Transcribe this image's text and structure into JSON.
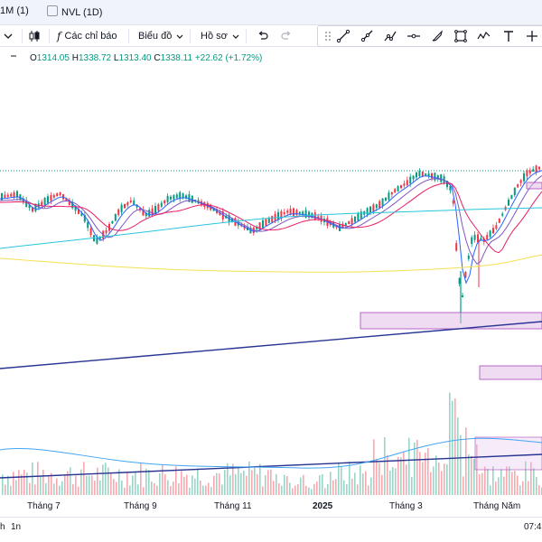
{
  "tabs": [
    {
      "label": "1M (1)"
    },
    {
      "label": "NVL (1D)"
    }
  ],
  "toolbar": {
    "indicators_label": "Các chỉ báo",
    "chart_label": "Biểu đồ",
    "profile_label": "Hồ sơ"
  },
  "legend": {
    "o_label": "O",
    "o_value": "1314.05",
    "h_label": "H",
    "h_value": "1338.72",
    "l_label": "L",
    "l_value": "1313.40",
    "c_label": "C",
    "c_value": "1338.11",
    "change": "+22.62 (+1.72%)"
  },
  "xaxis": {
    "labels": [
      "Tháng 7",
      "Tháng 9",
      "Tháng 11",
      "2025",
      "Tháng 3",
      "Tháng Năm"
    ]
  },
  "bottom": {
    "range_left": "h",
    "range_1n": "1n",
    "time": "07:4"
  },
  "colors": {
    "up": "#089981",
    "down": "#f23645",
    "ma_blue": "#2962ff",
    "ma_purple": "#7e57c2",
    "ma_red": "#e91e63",
    "ma_teal": "#26c6da",
    "ma_yellow": "#f5e050",
    "zone": "#e1bee7"
  },
  "chart_data": {
    "type": "candlestick",
    "xlabel": "",
    "ylabel": "",
    "x_tick_labels": [
      "Tháng 7",
      "Tháng 9",
      "Tháng 11",
      "2025",
      "Tháng 3",
      "Tháng Năm"
    ],
    "last_bar": {
      "open": 1314.05,
      "high": 1338.72,
      "low": 1313.4,
      "close": 1338.11,
      "change": 22.62,
      "change_pct": 1.72
    }
  }
}
